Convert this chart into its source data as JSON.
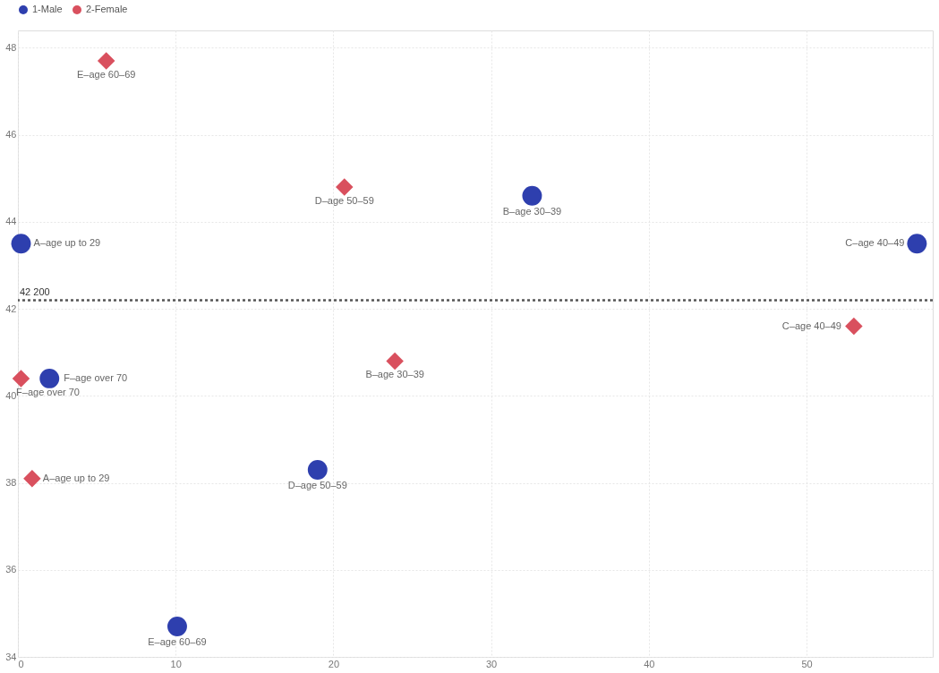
{
  "chart_data": {
    "type": "scatter",
    "xlim": [
      0,
      58
    ],
    "ylim": [
      34,
      48.4
    ],
    "xticks": [
      0,
      10,
      20,
      30,
      40,
      50
    ],
    "yticks": [
      34,
      36,
      38,
      40,
      42,
      44,
      46,
      48
    ],
    "grid": true,
    "legend": "top",
    "series": [
      {
        "name": "1-Male",
        "color": "#2e3fae",
        "marker": "circle",
        "x": [
          0.2,
          32.6,
          57,
          19.0,
          10.1,
          2.0
        ],
        "values": [
          43.5,
          44.6,
          43.5,
          38.3,
          34.7,
          40.4
        ]
      },
      {
        "name": "2-Female",
        "color": "#d9505e",
        "marker": "diamond",
        "x": [
          0.9,
          23.9,
          53.0,
          20.7,
          5.6,
          0.2
        ],
        "values": [
          38.1,
          40.8,
          41.6,
          44.8,
          47.7,
          40.4
        ]
      }
    ],
    "annotations": [
      {
        "text": "A–age up to 29",
        "x": 0.2,
        "y": 43.5
      },
      {
        "text": "B–age 30–39",
        "x": 32.6,
        "y": 44.6
      },
      {
        "text": "C–age 40–49",
        "x": 57,
        "y": 43.5
      },
      {
        "text": "D–age 50–59",
        "x": 19.0,
        "y": 38.3
      },
      {
        "text": "E–age 60–69",
        "x": 10.1,
        "y": 34.7
      },
      {
        "text": "F–age over 70",
        "x": 2.0,
        "y": 40.4
      },
      {
        "text": "A–age up to 29",
        "x": 0.9,
        "y": 38.1
      },
      {
        "text": "B–age 30–39",
        "x": 23.9,
        "y": 40.8
      },
      {
        "text": "C–age 40–49",
        "x": 53.0,
        "y": 41.6
      },
      {
        "text": "D–age 50–59",
        "x": 20.7,
        "y": 44.8
      },
      {
        "text": "E–age 60–69",
        "x": 5.6,
        "y": 47.7
      },
      {
        "text": "F–age over 70",
        "x": 0.2,
        "y": 40.4
      }
    ],
    "ref_lines": [
      {
        "axis": "y",
        "value": 42.2,
        "label": "42 200",
        "color": "#555555",
        "line_style": "dotted"
      }
    ]
  }
}
